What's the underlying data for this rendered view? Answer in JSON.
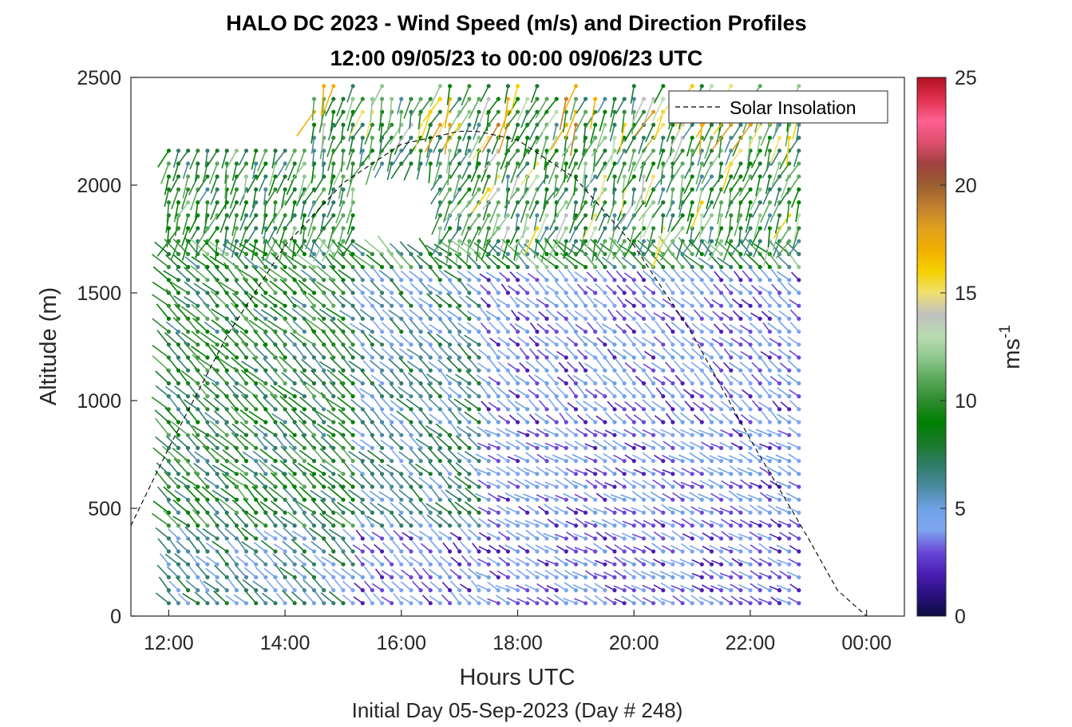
{
  "chart_data": {
    "type": "scatter",
    "title": "HALO DC 2023 - Wind Speed (m/s) and Direction Profiles",
    "subtitle": "12:00 09/05/23 to 00:00 09/06/23  UTC",
    "xlabel": "Hours UTC",
    "ylabel": "Altitude (m)",
    "footer": "Initial Day 05-Sep-2023 (Day # 248)",
    "xlim_hours": [
      11.35,
      24.65
    ],
    "ylim": [
      0,
      2500
    ],
    "x_tick_labels": [
      "12:00",
      "14:00",
      "16:00",
      "18:00",
      "20:00",
      "22:00",
      "00:00"
    ],
    "x_tick_hours": [
      12,
      14,
      16,
      18,
      20,
      22,
      24
    ],
    "y_ticks": [
      0,
      500,
      1000,
      1500,
      2000,
      2500
    ],
    "legend": {
      "entry": "Solar Insolation",
      "placement": "top-right",
      "line_style": "dashed",
      "color": "#000000"
    },
    "colorbar": {
      "label_base": "ms",
      "label_exp": "-1",
      "range": [
        0,
        25
      ],
      "ticks": [
        0,
        5,
        10,
        15,
        20,
        25
      ],
      "colors": [
        "#0d0d40",
        "#2a1080",
        "#4b1fb5",
        "#6a4ad8",
        "#7fa6f0",
        "#6fa2e6",
        "#4a8aa0",
        "#2f7d6a",
        "#1a7a2a",
        "#008000",
        "#2e8b2e",
        "#5aa85a",
        "#8fc88f",
        "#b8dcb0",
        "#c0c0c0",
        "#f0e070",
        "#f5d000",
        "#f0b000",
        "#e0a020",
        "#c08030",
        "#9a6030",
        "#a04040",
        "#e05070",
        "#ff6090",
        "#e03050",
        "#b01020"
      ]
    },
    "solar_insolation": {
      "description_points_hours": [
        11.35,
        12.0,
        13.0,
        14.0,
        15.0,
        16.0,
        17.0,
        17.3,
        18.0,
        19.0,
        20.0,
        21.0,
        22.0,
        23.0,
        23.5,
        24.0,
        24.65
      ],
      "altitude_equiv": [
        420,
        780,
        1300,
        1720,
        2010,
        2190,
        2250,
        2250,
        2210,
        2030,
        1720,
        1310,
        820,
        360,
        120,
        0,
        0
      ]
    },
    "wind_profiles": {
      "time_start_hours": 12.0,
      "time_step_hours": 0.1667,
      "time_count": 66,
      "altitude_levels_m": [
        60,
        120,
        180,
        240,
        300,
        360,
        420,
        480,
        540,
        600,
        660,
        720,
        780,
        840,
        900,
        960,
        1020,
        1080,
        1140,
        1200,
        1260,
        1320,
        1380,
        1440,
        1500,
        1560,
        1620,
        1680,
        1740,
        1800,
        1860,
        1920,
        1980,
        2040,
        2100,
        2160,
        2220,
        2280,
        2340,
        2400,
        2460
      ],
      "speed_summary": "Low levels mostly 2-5 m/s with purple/blue barbs; mid levels 5-9 m/s green early, 2-4 m/s later; upper levels 8-18 m/s with occasional yellow/orange values near 2300-2460 m."
    }
  }
}
